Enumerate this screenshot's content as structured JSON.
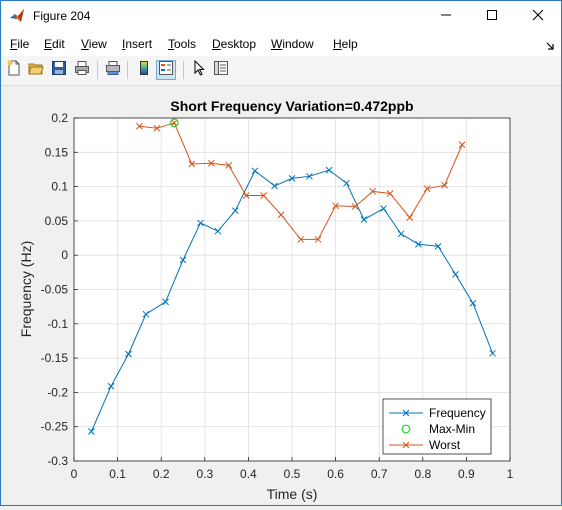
{
  "window": {
    "title": "Figure 204"
  },
  "menu": [
    "File",
    "Edit",
    "View",
    "Insert",
    "Tools",
    "Desktop",
    "Window",
    "Help"
  ],
  "toolbar": {
    "icons": [
      "new-figure-icon",
      "open-file-icon",
      "save-icon",
      "print-icon",
      "print-preview-icon",
      "colorbar-icon",
      "legend-icon",
      "pointer-icon",
      "property-inspector-icon"
    ]
  },
  "chart_data": {
    "type": "line",
    "title": "Short Frequency Variation=0.472ppb",
    "xlabel": "Time (s)",
    "ylabel": "Frequency (Hz)",
    "xlim": [
      0,
      1
    ],
    "ylim": [
      -0.3,
      0.2
    ],
    "xticks": [
      "0",
      "0.1",
      "0.2",
      "0.3",
      "0.4",
      "0.5",
      "0.6",
      "0.7",
      "0.8",
      "0.9",
      "1"
    ],
    "yticks": [
      "0.2",
      "0.15",
      "0.1",
      "0.05",
      "0",
      "-0.05",
      "-0.1",
      "-0.15",
      "-0.2",
      "-0.25",
      "-0.3"
    ],
    "grid": true,
    "legend_position": "bottom-right",
    "series": [
      {
        "name": "Frequency",
        "color": "#0072bd",
        "marker": "x",
        "x": [
          0.04,
          0.085,
          0.125,
          0.165,
          0.21,
          0.25,
          0.29,
          0.33,
          0.37,
          0.415,
          0.46,
          0.5,
          0.54,
          0.585,
          0.625,
          0.665,
          0.71,
          0.75,
          0.79,
          0.835,
          0.875,
          0.915,
          0.96
        ],
        "y": [
          -0.257,
          -0.191,
          -0.144,
          -0.086,
          -0.068,
          -0.007,
          0.047,
          0.035,
          0.065,
          0.123,
          0.101,
          0.112,
          0.115,
          0.124,
          0.105,
          0.052,
          0.068,
          0.031,
          0.016,
          0.013,
          -0.028,
          -0.07,
          -0.143
        ]
      },
      {
        "name": "Max-Min",
        "color": "#1fd61f",
        "marker": "o",
        "x": [
          0.23
        ],
        "y": [
          0.193
        ]
      },
      {
        "name": "Worst",
        "color": "#d95319",
        "marker": "x",
        "x": [
          0.15,
          0.19,
          0.23,
          0.27,
          0.315,
          0.355,
          0.395,
          0.435,
          0.475,
          0.52,
          0.56,
          0.6,
          0.645,
          0.685,
          0.725,
          0.77,
          0.81,
          0.85,
          0.89
        ],
        "y": [
          0.188,
          0.185,
          0.193,
          0.133,
          0.134,
          0.131,
          0.087,
          0.087,
          0.059,
          0.023,
          0.023,
          0.072,
          0.071,
          0.093,
          0.09,
          0.055,
          0.097,
          0.102,
          0.161
        ]
      }
    ]
  }
}
